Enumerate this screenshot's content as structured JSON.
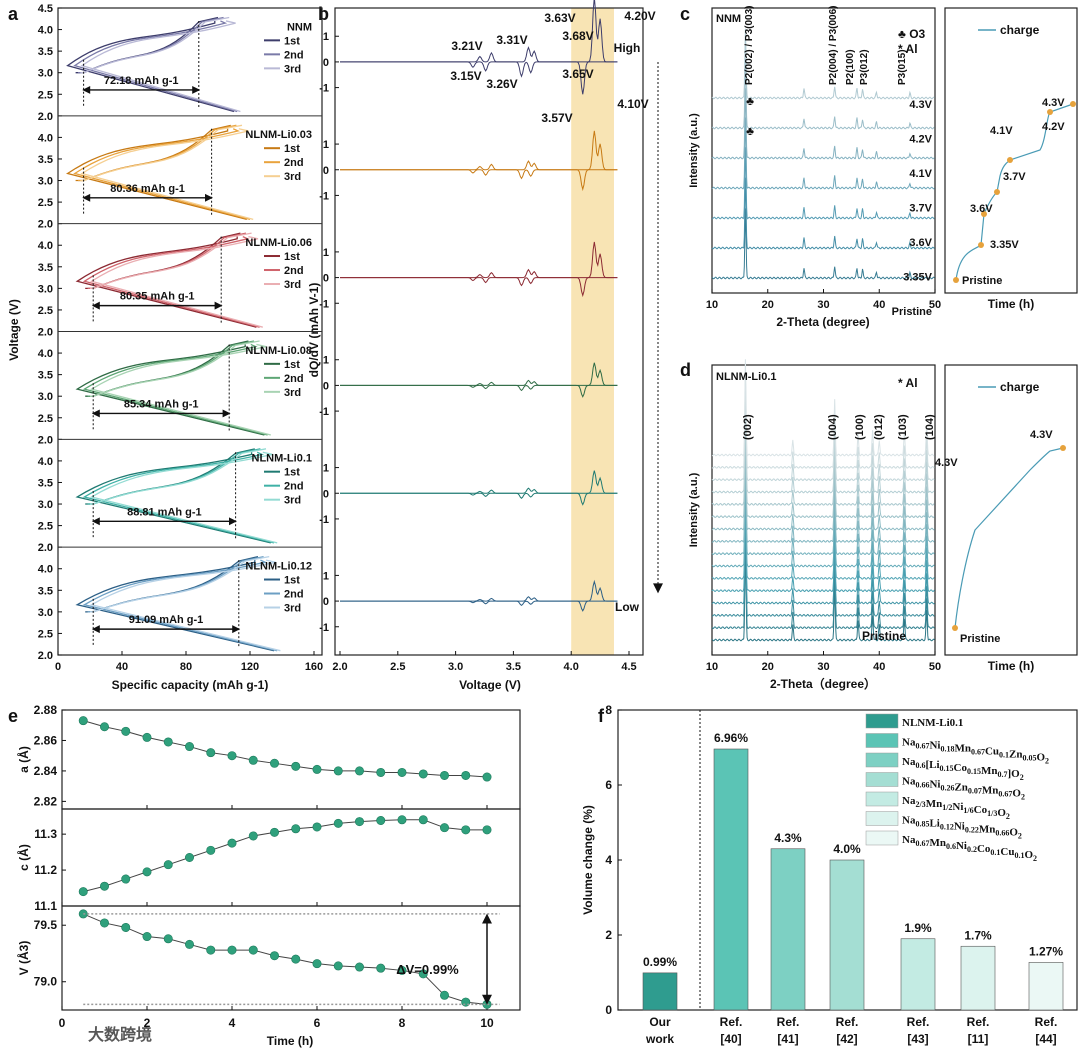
{
  "panel_labels": [
    "a",
    "b",
    "c",
    "d",
    "e",
    "f"
  ],
  "watermark": "大数跨境",
  "chart_data": [
    {
      "id": "a",
      "type": "line",
      "xlabel": "Specific capacity (mAh g-1)",
      "ylabel": "Voltage (V)",
      "xlim": [
        0,
        160
      ],
      "ylim": [
        2.0,
        4.5
      ],
      "xticks": [
        0,
        40,
        80,
        120,
        160
      ],
      "yticks": [
        "2.0",
        "2.5",
        "3.0",
        "3.5",
        "4.0",
        "4.5"
      ],
      "legend": [
        "1st",
        "2nd",
        "3rd"
      ],
      "samples": [
        {
          "name": "NNM",
          "capacity_label": "72.18 mAh g-1",
          "colors": [
            "#3d3d6b",
            "#7a7aa8",
            "#b9b9d6"
          ],
          "cap_start": 16,
          "cap_end": 88
        },
        {
          "name": "NLNM-Li0.03",
          "capacity_label": "80.36 mAh g-1",
          "colors": [
            "#c77a14",
            "#e9a33d",
            "#f5cf92"
          ],
          "cap_start": 16,
          "cap_end": 96
        },
        {
          "name": "NLNM-Li0.06",
          "capacity_label": "80.35 mAh g-1",
          "colors": [
            "#8c2a33",
            "#d0646c",
            "#eaaeb2"
          ],
          "cap_start": 22,
          "cap_end": 102
        },
        {
          "name": "NLNM-Li0.08",
          "capacity_label": "85.34 mAh g-1",
          "colors": [
            "#2f6b45",
            "#5ea675",
            "#a8d3b3"
          ],
          "cap_start": 22,
          "cap_end": 107
        },
        {
          "name": "NLNM-Li0.1",
          "capacity_label": "88.81 mAh g-1",
          "colors": [
            "#1f7a72",
            "#3fb1a6",
            "#93dbd3"
          ],
          "cap_start": 22,
          "cap_end": 111
        },
        {
          "name": "NLNM-Li0.12",
          "capacity_label": "91.09 mAh g-1",
          "colors": [
            "#2c5f86",
            "#6c9fc4",
            "#b6d1e6"
          ],
          "cap_start": 22,
          "cap_end": 113
        }
      ]
    },
    {
      "id": "b",
      "type": "line",
      "xlabel": "Voltage (V)",
      "ylabel": "dQ/dV (mAh V-1)",
      "xlim": [
        2.0,
        4.5
      ],
      "xticks": [
        "2.0",
        "2.5",
        "3.0",
        "3.5",
        "4.0",
        "4.5"
      ],
      "yticks": [
        "1",
        "0",
        "-1"
      ],
      "highlight_range": [
        4.0,
        4.37
      ],
      "arrow_labels": [
        "High",
        "Low"
      ],
      "peak_labels": [
        "3.21V",
        "3.31V",
        "3.63V",
        "3.68V",
        "4.20V",
        "3.15V",
        "3.26V",
        "3.65V",
        "3.57V",
        "4.10V"
      ]
    },
    {
      "id": "c",
      "type": "line",
      "title": "NNM",
      "xlabel": "2-Theta (degree)",
      "ylabel": "Intensity (a.u.)",
      "xlim": [
        10,
        50
      ],
      "xticks": [
        10,
        20,
        30,
        40,
        50
      ],
      "peak_labels": [
        "P2(002) / P3(003)",
        "P2(004) / P3(006)",
        "P2(100)",
        "P3(012)",
        "P3(015)"
      ],
      "legend_markers": [
        "♣ O3",
        "* Al"
      ],
      "pattern_labels": [
        "4.3V",
        "4.2V",
        "4.1V",
        "3.7V",
        "3.6V",
        "3.35V",
        "Pristine"
      ],
      "time_plot": {
        "legend": "charge",
        "xlabel": "Time (h)",
        "points": [
          "Pristine",
          "3.35V",
          "3.6V",
          "3.7V",
          "4.1V",
          "4.2V",
          "4.3V"
        ]
      }
    },
    {
      "id": "d",
      "type": "line",
      "title": "NLNM-Li0.1",
      "xlabel": "2-Theta（degree）",
      "ylabel": "Intensity (a.u.)",
      "xlim": [
        10,
        50
      ],
      "xticks": [
        10,
        20,
        30,
        40,
        50
      ],
      "peak_labels": [
        "(002)",
        "(004)",
        "(100)",
        "(012)",
        "(103)",
        "(104)"
      ],
      "legend_markers": [
        "* Al"
      ],
      "pattern_labels": [
        "4.3V",
        "Pristine"
      ],
      "time_plot": {
        "legend": "charge",
        "xlabel": "Time (h)",
        "points": [
          "Pristine",
          "4.3V"
        ]
      }
    },
    {
      "id": "e",
      "type": "scatter",
      "xlabel": "Time (h)",
      "xlim": [
        0,
        10.5
      ],
      "xticks": [
        0,
        2,
        4,
        6,
        8,
        10
      ],
      "x": [
        0.5,
        1,
        1.5,
        2,
        2.5,
        3,
        3.5,
        4,
        4.5,
        5,
        5.5,
        6,
        6.5,
        7,
        7.5,
        8,
        8.5,
        9,
        9.5,
        10
      ],
      "series": [
        {
          "name": "a (Å)",
          "ylim": [
            2.815,
            2.88
          ],
          "yticks": [
            "2.82",
            "2.84",
            "2.86",
            "2.88"
          ],
          "values": [
            2.873,
            2.869,
            2.866,
            2.862,
            2.859,
            2.856,
            2.852,
            2.85,
            2.847,
            2.845,
            2.843,
            2.841,
            2.84,
            2.84,
            2.839,
            2.839,
            2.838,
            2.837,
            2.837,
            2.836
          ]
        },
        {
          "name": "c (Å)",
          "ylim": [
            11.1,
            11.37
          ],
          "yticks": [
            "11.1",
            "11.2",
            "11.3"
          ],
          "values": [
            11.14,
            11.155,
            11.175,
            11.195,
            11.215,
            11.235,
            11.255,
            11.275,
            11.295,
            11.305,
            11.315,
            11.32,
            11.33,
            11.335,
            11.338,
            11.34,
            11.34,
            11.318,
            11.312,
            11.312
          ]
        },
        {
          "name": "V (Å3)",
          "ylim": [
            78.75,
            79.67
          ],
          "yticks": [
            "79.0",
            "79.5"
          ],
          "values": [
            79.6,
            79.52,
            79.48,
            79.4,
            79.38,
            79.33,
            79.28,
            79.28,
            79.28,
            79.23,
            79.2,
            79.16,
            79.14,
            79.13,
            79.12,
            79.1,
            79.07,
            78.88,
            78.82,
            78.8
          ]
        }
      ],
      "annotation": "ΔV=0.99%",
      "color": "#2fa07c"
    },
    {
      "id": "f",
      "type": "bar",
      "ylabel": "Volume change (%)",
      "ylim": [
        0,
        8
      ],
      "yticks": [
        "0",
        "2",
        "4",
        "6",
        "8"
      ],
      "categories": [
        "Our work",
        "Ref. [40]",
        "Ref. [41]",
        "Ref. [42]",
        "Ref. [43]",
        "Ref. [11]",
        "Ref. [44]"
      ],
      "values": [
        0.99,
        6.96,
        4.3,
        4.0,
        1.9,
        1.7,
        1.27
      ],
      "data_labels": [
        "0.99%",
        "6.96%",
        "4.3%",
        "4.0%",
        "1.9%",
        "1.7%",
        "1.27%"
      ],
      "colors": [
        "#2f9c8f",
        "#5bc4b5",
        "#7dd0c3",
        "#a4ded3",
        "#c3ebe3",
        "#dcf3ee",
        "#ebf8f5"
      ],
      "legend": [
        "NLNM-Li0.1",
        "Na0.67Ni0.18Mn0.67Cu0.1Zn0.05O2",
        "Na0.6[Li0.15Co0.15Mn0.7]O2",
        "Na0.66Ni0.26Zn0.07Mn0.67O2",
        "Na2/3Mn1/2Ni1/6Co1/3O2",
        "Na0.85Li0.12Ni0.22Mn0.66O2",
        "Na0.67Mn0.6Ni0.2Co0.1Cu0.1O2"
      ],
      "legend_placement": "top-right"
    }
  ]
}
